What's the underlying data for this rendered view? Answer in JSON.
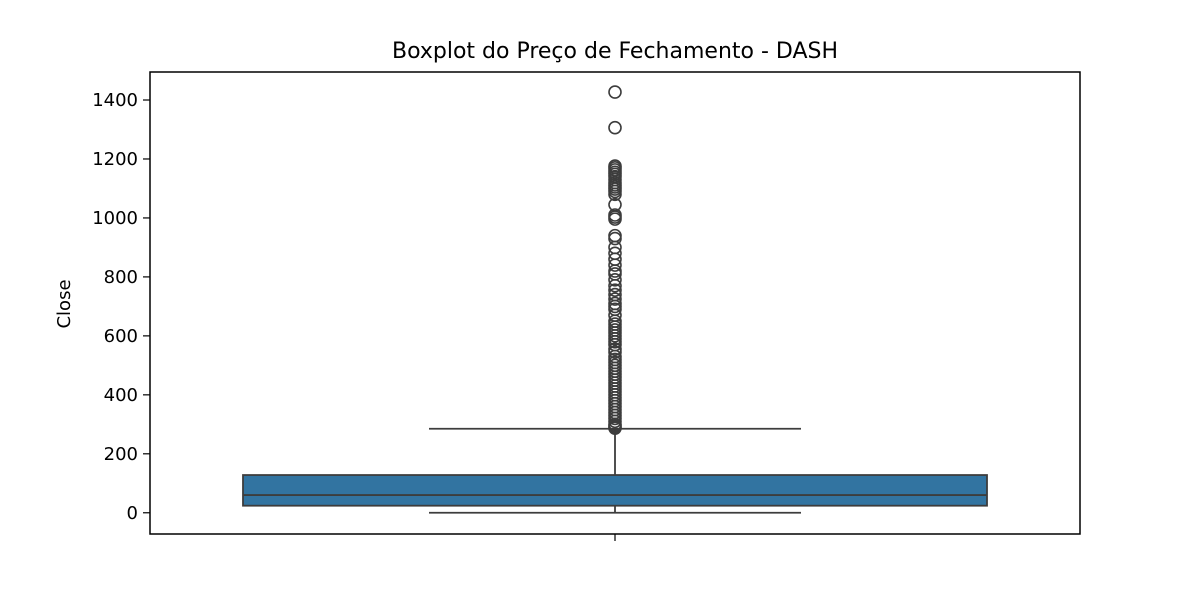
{
  "chart_data": {
    "type": "box",
    "title": "Boxplot do Preço de Fechamento - DASH",
    "xlabel": "",
    "ylabel": "Close",
    "ylim": [
      -72,
      1495
    ],
    "yticks": [
      0,
      200,
      400,
      600,
      800,
      1000,
      1200,
      1400
    ],
    "grid": false,
    "box": {
      "min": 0,
      "q1": 24,
      "median": 60,
      "q3": 128,
      "whisker_low": 0,
      "whisker_high": 285,
      "color": "#3274a1",
      "line_color": "#3d3d3d"
    },
    "outliers": [
      1427,
      1306,
      1176,
      1170,
      1163,
      1155,
      1148,
      1140,
      1130,
      1120,
      1112,
      1105,
      1098,
      1090,
      1080,
      1045,
      1010,
      1003,
      996,
      940,
      930,
      900,
      880,
      860,
      840,
      820,
      810,
      790,
      770,
      755,
      740,
      725,
      710,
      700,
      690,
      670,
      650,
      640,
      630,
      620,
      610,
      600,
      590,
      580,
      570,
      555,
      545,
      530,
      520,
      510,
      500,
      490,
      480,
      470,
      460,
      450,
      440,
      430,
      420,
      410,
      400,
      390,
      380,
      370,
      360,
      350,
      340,
      330,
      320,
      310,
      300,
      295,
      290,
      287
    ]
  }
}
